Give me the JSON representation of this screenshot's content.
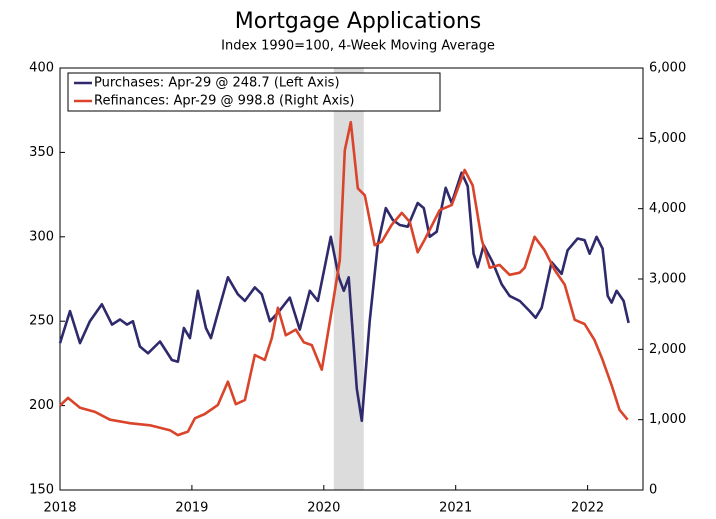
{
  "chart_data": {
    "type": "line",
    "title": "Mortgage Applications",
    "subtitle": "Index 1990=100, 4-Week Moving Average",
    "xlim": [
      2018,
      2022.42
    ],
    "xticks": [
      2018,
      2019,
      2020,
      2021,
      2022
    ],
    "ylim": [
      150,
      400
    ],
    "yticks": [
      150,
      200,
      250,
      300,
      350,
      400
    ],
    "y2lim": [
      0,
      6000
    ],
    "y2ticks": [
      0,
      {
        "value": 1000,
        "label": "1,000"
      },
      {
        "value": 2000,
        "label": "2,000"
      },
      {
        "value": 3000,
        "label": "3,000"
      },
      {
        "value": 4000,
        "label": "4,000"
      },
      {
        "value": 5000,
        "label": "5,000"
      },
      {
        "value": 6000,
        "label": "6,000"
      }
    ],
    "shaded_region": [
      2020.076,
      2020.303
    ],
    "legend": "top-left",
    "series": [
      {
        "name": "Purchases: Apr-29 @ 248.7 (Left Axis)",
        "color": "#2e2a6b",
        "x": [
          2018.0,
          2018.076,
          2018.152,
          2018.227,
          2018.318,
          2018.394,
          2018.455,
          2018.508,
          2018.553,
          2018.606,
          2018.667,
          2018.758,
          2018.848,
          2018.894,
          2018.939,
          2018.985,
          2019.045,
          2019.106,
          2019.144,
          2019.197,
          2019.273,
          2019.348,
          2019.402,
          2019.477,
          2019.53,
          2019.591,
          2019.652,
          2019.742,
          2019.818,
          2019.894,
          2019.955,
          2020.053,
          2020.114,
          2020.152,
          2020.189,
          2020.25,
          2020.288,
          2020.348,
          2020.409,
          2020.47,
          2020.523,
          2020.576,
          2020.636,
          2020.712,
          2020.758,
          2020.803,
          2020.856,
          2020.924,
          2020.97,
          2021.045,
          2021.091,
          2021.136,
          2021.167,
          2021.212,
          2021.28,
          2021.348,
          2021.409,
          2021.485,
          2021.561,
          2021.606,
          2021.652,
          2021.727,
          2021.803,
          2021.848,
          2021.924,
          2021.977,
          2022.015,
          2022.068,
          2022.114,
          2022.152,
          2022.182,
          2022.22,
          2022.273,
          2022.311
        ],
        "values": [
          237,
          256,
          237,
          250,
          260,
          248,
          251,
          248,
          250,
          235,
          231,
          238,
          227,
          226,
          246,
          240,
          268,
          246,
          240,
          255,
          276,
          266,
          262,
          270,
          266,
          250,
          255,
          264,
          245,
          268,
          262,
          300,
          276,
          268,
          276,
          210,
          191,
          250,
          295,
          317,
          310,
          307,
          306,
          320,
          317,
          300,
          303,
          329,
          320,
          338,
          330,
          290,
          282,
          295,
          285,
          272,
          265,
          262,
          256,
          252,
          258,
          285,
          278,
          292,
          299,
          298,
          290,
          300,
          293,
          265,
          261,
          268,
          262,
          249
        ]
      },
      {
        "name": "Refinances: Apr-29 @ 998.8 (Right Axis)",
        "color": "#d9442a",
        "axis": "y2",
        "x": [
          2018.0,
          2018.061,
          2018.152,
          2018.265,
          2018.379,
          2018.53,
          2018.682,
          2018.833,
          2018.894,
          2018.97,
          2019.023,
          2019.098,
          2019.197,
          2019.273,
          2019.333,
          2019.402,
          2019.477,
          2019.553,
          2019.606,
          2019.652,
          2019.712,
          2019.788,
          2019.848,
          2019.909,
          2019.985,
          2020.061,
          2020.121,
          2020.159,
          2020.205,
          2020.258,
          2020.311,
          2020.386,
          2020.439,
          2020.515,
          2020.591,
          2020.652,
          2020.712,
          2020.765,
          2020.879,
          2020.97,
          2021.068,
          2021.129,
          2021.197,
          2021.258,
          2021.333,
          2021.409,
          2021.485,
          2021.523,
          2021.598,
          2021.674,
          2021.75,
          2021.826,
          2021.902,
          2021.977,
          2022.053,
          2022.114,
          2022.182,
          2022.242,
          2022.303
        ],
        "values": [
          1200,
          1310,
          1170,
          1110,
          1000,
          950,
          920,
          850,
          780,
          830,
          1020,
          1080,
          1210,
          1540,
          1220,
          1280,
          1920,
          1850,
          2160,
          2590,
          2200,
          2280,
          2100,
          2060,
          1710,
          2560,
          3270,
          4830,
          5230,
          4290,
          4190,
          3480,
          3530,
          3770,
          3940,
          3810,
          3380,
          3560,
          3980,
          4050,
          4550,
          4330,
          3560,
          3160,
          3200,
          3060,
          3090,
          3160,
          3600,
          3410,
          3130,
          2920,
          2420,
          2360,
          2130,
          1850,
          1490,
          1140,
          1000
        ]
      }
    ]
  }
}
